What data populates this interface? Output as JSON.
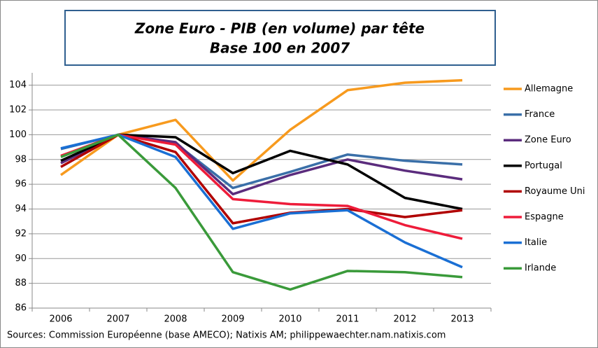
{
  "chart_data": {
    "type": "line",
    "title": "Zone Euro - PIB (en volume) par tête",
    "subtitle": "Base 100 en 2007",
    "source": "Sources: Commission Européenne (base AMECO); Natixis AM; philippewaechter.nam.natixis.com",
    "categories": [
      "2006",
      "2007",
      "2008",
      "2009",
      "2010",
      "2011",
      "2012",
      "2013"
    ],
    "ylim": [
      86,
      105
    ],
    "yticks": [
      86,
      88,
      90,
      92,
      94,
      96,
      98,
      100,
      102,
      104
    ],
    "grid": true,
    "legend": "right",
    "series": [
      {
        "name": "Allemagne",
        "color": "#f79a1e",
        "values": [
          96.75,
          100,
          101.2,
          96.3,
          100.4,
          103.6,
          104.2,
          104.4
        ]
      },
      {
        "name": "France",
        "color": "#3a6fa8",
        "values": [
          98.85,
          100,
          99.3,
          95.7,
          97.0,
          98.4,
          97.9,
          97.6
        ]
      },
      {
        "name": "Zone Euro",
        "color": "#5b2c7d",
        "values": [
          97.7,
          100,
          99.4,
          95.2,
          96.75,
          98.0,
          97.1,
          96.4
        ]
      },
      {
        "name": "Portugal",
        "color": "#000000",
        "values": [
          97.9,
          100,
          99.8,
          96.9,
          98.7,
          97.6,
          94.9,
          94.0
        ]
      },
      {
        "name": "Royaume Uni",
        "color": "#b00000",
        "values": [
          97.4,
          100,
          98.6,
          92.85,
          93.7,
          94.0,
          93.35,
          93.9
        ]
      },
      {
        "name": "Espagne",
        "color": "#ee1c3a",
        "values": [
          98.3,
          100,
          99.2,
          94.8,
          94.4,
          94.25,
          92.7,
          91.6
        ]
      },
      {
        "name": "Italie",
        "color": "#1a6fd4",
        "values": [
          98.9,
          100,
          98.2,
          92.4,
          93.65,
          93.9,
          91.3,
          89.3
        ]
      },
      {
        "name": "Irlande",
        "color": "#3a9a3a",
        "values": [
          98.2,
          100,
          95.7,
          88.9,
          87.5,
          89.0,
          88.9,
          88.5
        ]
      }
    ]
  }
}
